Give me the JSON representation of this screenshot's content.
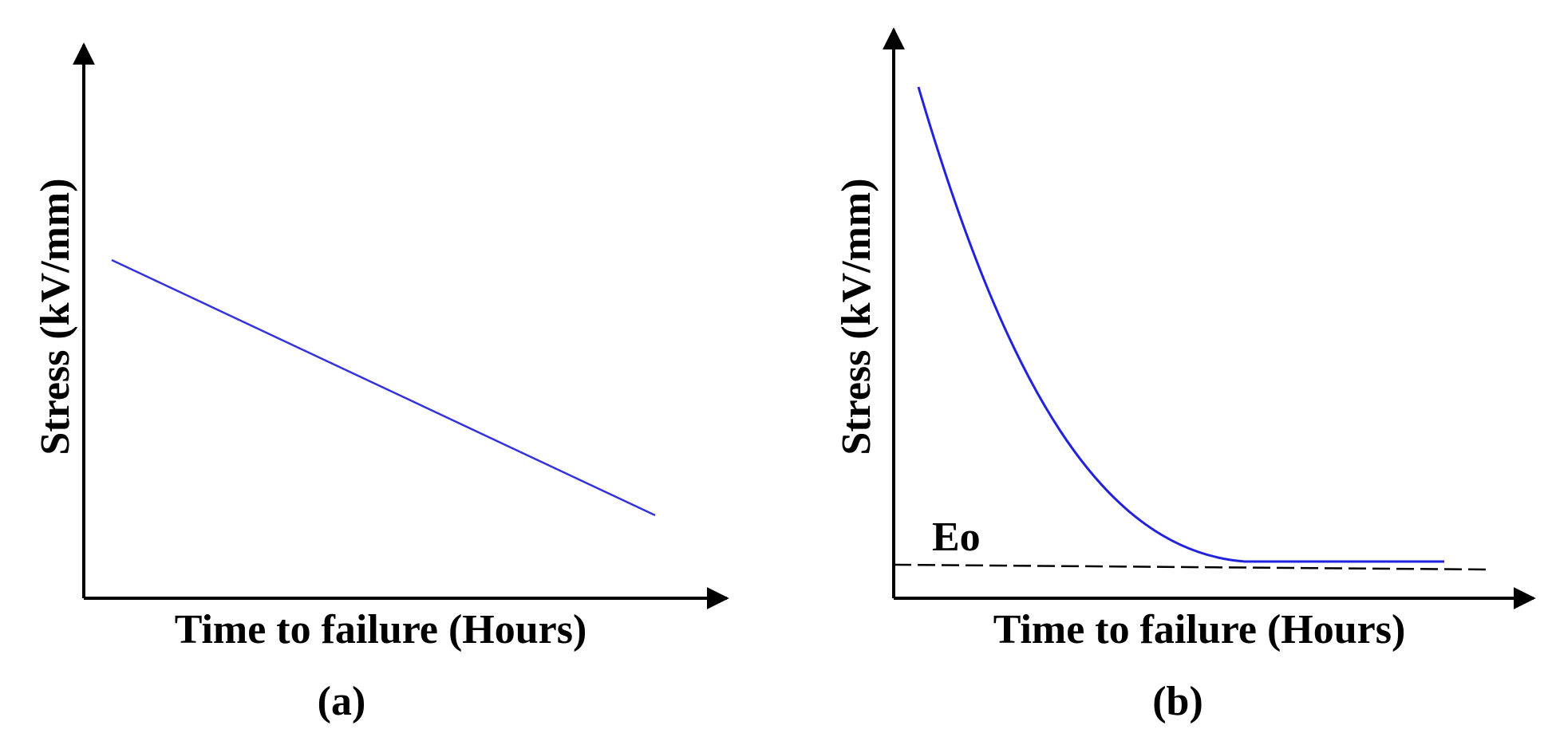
{
  "panels": [
    {
      "y_label": "Stress (kV/mm)",
      "x_label": "Time to failure (Hours)",
      "caption": "(a)"
    },
    {
      "y_label": "Stress (kV/mm)",
      "x_label": "Time to failure (Hours)",
      "caption": "(b)",
      "annotation": "Eo"
    }
  ]
}
